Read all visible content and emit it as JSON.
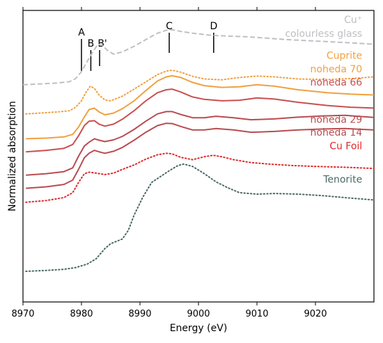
{
  "chart_data": {
    "type": "line",
    "xlabel": "Energy (eV)",
    "ylabel": "Normalized absorption",
    "xlim": [
      8970,
      9030
    ],
    "x_ticks": [
      8970,
      8980,
      8990,
      9000,
      9010,
      9020
    ],
    "y_ticks_shown": false,
    "grid": false,
    "markers": [
      {
        "label": "A",
        "x": 8980.0
      },
      {
        "label": "B",
        "x": 8981.6
      },
      {
        "label": "B'",
        "x": 8983.1
      },
      {
        "label": "C",
        "x": 8995.0
      },
      {
        "label": "D",
        "x": 9002.6
      }
    ],
    "series": [
      {
        "name": "Cu⁺",
        "name_line2": "colourless glass",
        "color": "#c0c0c4",
        "style": "dashed",
        "label_pos": [
          9028,
          0.957
        ],
        "points": [
          [
            8970,
            0.745
          ],
          [
            8973,
            0.748
          ],
          [
            8976,
            0.751
          ],
          [
            8978,
            0.756
          ],
          [
            8979,
            0.766
          ],
          [
            8980,
            0.79
          ],
          [
            8981,
            0.826
          ],
          [
            8982,
            0.86
          ],
          [
            8982.8,
            0.883
          ],
          [
            8983.5,
            0.882
          ],
          [
            8984.5,
            0.862
          ],
          [
            8985.5,
            0.85
          ],
          [
            8987,
            0.858
          ],
          [
            8989,
            0.877
          ],
          [
            8991,
            0.9
          ],
          [
            8993,
            0.922
          ],
          [
            8994.5,
            0.932
          ],
          [
            8995.5,
            0.934
          ],
          [
            8997,
            0.928
          ],
          [
            8999,
            0.922
          ],
          [
            9002,
            0.915
          ],
          [
            9005,
            0.912
          ],
          [
            9008,
            0.91
          ],
          [
            9011,
            0.906
          ],
          [
            9015,
            0.9
          ],
          [
            9020,
            0.895
          ],
          [
            9025,
            0.89
          ],
          [
            9030,
            0.884
          ]
        ]
      },
      {
        "name": "Cuprite",
        "color": "#f0a040",
        "style": "dotted",
        "label_pos": [
          9028,
          0.834
        ],
        "points": [
          [
            8970.5,
            0.645
          ],
          [
            8973,
            0.648
          ],
          [
            8976,
            0.652
          ],
          [
            8978,
            0.656
          ],
          [
            8979,
            0.668
          ],
          [
            8980,
            0.69
          ],
          [
            8980.8,
            0.72
          ],
          [
            8981.5,
            0.74
          ],
          [
            8982.2,
            0.733
          ],
          [
            8983,
            0.71
          ],
          [
            8984,
            0.693
          ],
          [
            8985,
            0.69
          ],
          [
            8987,
            0.706
          ],
          [
            8989,
            0.73
          ],
          [
            8991,
            0.755
          ],
          [
            8993,
            0.78
          ],
          [
            8994.5,
            0.792
          ],
          [
            8995.5,
            0.795
          ],
          [
            8997,
            0.788
          ],
          [
            8999,
            0.774
          ],
          [
            9001,
            0.765
          ],
          [
            9004,
            0.762
          ],
          [
            9007,
            0.77
          ],
          [
            9010,
            0.775
          ],
          [
            9013,
            0.772
          ],
          [
            9017,
            0.765
          ],
          [
            9022,
            0.763
          ],
          [
            9026,
            0.766
          ],
          [
            9030,
            0.772
          ]
        ]
      },
      {
        "name": "noheda 70",
        "color": "#f0a040",
        "style": "solid",
        "label_pos": [
          9028,
          0.788
        ],
        "points": [
          [
            8970.5,
            0.56
          ],
          [
            8974,
            0.562
          ],
          [
            8977,
            0.566
          ],
          [
            8978.5,
            0.575
          ],
          [
            8979.5,
            0.6
          ],
          [
            8980.5,
            0.635
          ],
          [
            8981.3,
            0.66
          ],
          [
            8982.2,
            0.665
          ],
          [
            8983,
            0.652
          ],
          [
            8984,
            0.642
          ],
          [
            8985.5,
            0.648
          ],
          [
            8987,
            0.663
          ],
          [
            8989,
            0.69
          ],
          [
            8991,
            0.725
          ],
          [
            8993,
            0.758
          ],
          [
            8994.5,
            0.772
          ],
          [
            8995.5,
            0.776
          ],
          [
            8997,
            0.77
          ],
          [
            8999,
            0.753
          ],
          [
            9001,
            0.742
          ],
          [
            9004,
            0.736
          ],
          [
            9007,
            0.738
          ],
          [
            9010,
            0.745
          ],
          [
            9013,
            0.74
          ],
          [
            9017,
            0.728
          ],
          [
            9022,
            0.718
          ],
          [
            9026,
            0.713
          ],
          [
            9030,
            0.71
          ]
        ]
      },
      {
        "name": "noheda 66",
        "color": "#c85050",
        "style": "solid",
        "label_pos": [
          9028,
          0.742
        ],
        "points": [
          [
            8970.5,
            0.515
          ],
          [
            8974,
            0.52
          ],
          [
            8977,
            0.527
          ],
          [
            8978.5,
            0.54
          ],
          [
            8979.5,
            0.57
          ],
          [
            8980.5,
            0.605
          ],
          [
            8981.3,
            0.62
          ],
          [
            8982.2,
            0.622
          ],
          [
            8983,
            0.61
          ],
          [
            8984,
            0.603
          ],
          [
            8985.5,
            0.61
          ],
          [
            8987,
            0.627
          ],
          [
            8989,
            0.656
          ],
          [
            8991,
            0.69
          ],
          [
            8993,
            0.718
          ],
          [
            8994.5,
            0.728
          ],
          [
            8995.5,
            0.73
          ],
          [
            8997,
            0.72
          ],
          [
            8999,
            0.703
          ],
          [
            9001,
            0.695
          ],
          [
            9004,
            0.69
          ],
          [
            9007,
            0.692
          ],
          [
            9010,
            0.7
          ],
          [
            9013,
            0.696
          ],
          [
            9017,
            0.685
          ],
          [
            9022,
            0.674
          ],
          [
            9026,
            0.668
          ],
          [
            9030,
            0.665
          ]
        ]
      },
      {
        "name": "noheda 29",
        "color": "#b84c50",
        "style": "solid",
        "label_pos": [
          9028,
          0.615
        ],
        "points": [
          [
            8970.5,
            0.435
          ],
          [
            8974,
            0.44
          ],
          [
            8977,
            0.447
          ],
          [
            8978.5,
            0.46
          ],
          [
            8979.5,
            0.5
          ],
          [
            8980.5,
            0.535
          ],
          [
            8981.3,
            0.548
          ],
          [
            8982.2,
            0.56
          ],
          [
            8983,
            0.555
          ],
          [
            8984,
            0.55
          ],
          [
            8985.5,
            0.556
          ],
          [
            8987,
            0.568
          ],
          [
            8989,
            0.592
          ],
          [
            8991,
            0.62
          ],
          [
            8993,
            0.645
          ],
          [
            8994.5,
            0.653
          ],
          [
            8995.5,
            0.653
          ],
          [
            8997,
            0.643
          ],
          [
            8999,
            0.632
          ],
          [
            9001,
            0.632
          ],
          [
            9003,
            0.637
          ],
          [
            9006,
            0.632
          ],
          [
            9009,
            0.625
          ],
          [
            9013,
            0.628
          ],
          [
            9017,
            0.634
          ],
          [
            9021,
            0.638
          ],
          [
            9025,
            0.64
          ],
          [
            9030,
            0.633
          ]
        ]
      },
      {
        "name": "noheda 14",
        "color": "#b84c50",
        "style": "solid",
        "label_pos": [
          9028,
          0.57
        ],
        "points": [
          [
            8970.5,
            0.39
          ],
          [
            8974,
            0.395
          ],
          [
            8977,
            0.403
          ],
          [
            8978.5,
            0.418
          ],
          [
            8979.5,
            0.455
          ],
          [
            8980.5,
            0.495
          ],
          [
            8981.3,
            0.51
          ],
          [
            8982.2,
            0.52
          ],
          [
            8983,
            0.515
          ],
          [
            8984,
            0.51
          ],
          [
            8985.5,
            0.517
          ],
          [
            8987,
            0.53
          ],
          [
            8989,
            0.555
          ],
          [
            8991,
            0.582
          ],
          [
            8993,
            0.605
          ],
          [
            8994.5,
            0.613
          ],
          [
            8995.5,
            0.612
          ],
          [
            8997,
            0.602
          ],
          [
            8999,
            0.59
          ],
          [
            9001,
            0.59
          ],
          [
            9003,
            0.595
          ],
          [
            9006,
            0.59
          ],
          [
            9009,
            0.582
          ],
          [
            9013,
            0.585
          ],
          [
            9017,
            0.59
          ],
          [
            9021,
            0.593
          ],
          [
            9025,
            0.595
          ],
          [
            9030,
            0.59
          ]
        ]
      },
      {
        "name": "Cu Foil",
        "color": "#e02828",
        "style": "dotted",
        "label_pos": [
          9028,
          0.524
        ],
        "points": [
          [
            8970.5,
            0.342
          ],
          [
            8974,
            0.348
          ],
          [
            8977,
            0.358
          ],
          [
            8978.5,
            0.375
          ],
          [
            8979.5,
            0.41
          ],
          [
            8980.5,
            0.44
          ],
          [
            8981.3,
            0.445
          ],
          [
            8982.5,
            0.442
          ],
          [
            8984,
            0.437
          ],
          [
            8985.5,
            0.442
          ],
          [
            8987,
            0.455
          ],
          [
            8989,
            0.47
          ],
          [
            8991,
            0.49
          ],
          [
            8993,
            0.505
          ],
          [
            8994.5,
            0.51
          ],
          [
            8995.5,
            0.508
          ],
          [
            8997,
            0.496
          ],
          [
            8999,
            0.488
          ],
          [
            9001,
            0.498
          ],
          [
            9002.5,
            0.503
          ],
          [
            9004,
            0.498
          ],
          [
            9006,
            0.488
          ],
          [
            9009,
            0.478
          ],
          [
            9012,
            0.473
          ],
          [
            9016,
            0.468
          ],
          [
            9020,
            0.465
          ],
          [
            9025,
            0.462
          ],
          [
            9030,
            0.458
          ]
        ]
      },
      {
        "name": "Tenorite",
        "color": "#4a6865",
        "style": "dotted",
        "label_pos": [
          9028,
          0.409
        ],
        "points": [
          [
            8970.5,
            0.105
          ],
          [
            8974,
            0.108
          ],
          [
            8977,
            0.112
          ],
          [
            8979,
            0.118
          ],
          [
            8981,
            0.13
          ],
          [
            8982.5,
            0.148
          ],
          [
            8984,
            0.183
          ],
          [
            8985,
            0.2
          ],
          [
            8986,
            0.208
          ],
          [
            8987,
            0.216
          ],
          [
            8988,
            0.245
          ],
          [
            8989,
            0.298
          ],
          [
            8990.5,
            0.36
          ],
          [
            8992,
            0.41
          ],
          [
            8993.5,
            0.43
          ],
          [
            8995,
            0.45
          ],
          [
            8996.5,
            0.468
          ],
          [
            8997.5,
            0.473
          ],
          [
            8999,
            0.465
          ],
          [
            9001,
            0.44
          ],
          [
            9003,
            0.412
          ],
          [
            9005,
            0.392
          ],
          [
            9007,
            0.375
          ],
          [
            9010,
            0.37
          ],
          [
            9013,
            0.372
          ],
          [
            9017,
            0.37
          ],
          [
            9021,
            0.365
          ],
          [
            9025,
            0.358
          ],
          [
            9030,
            0.35
          ]
        ]
      }
    ]
  }
}
